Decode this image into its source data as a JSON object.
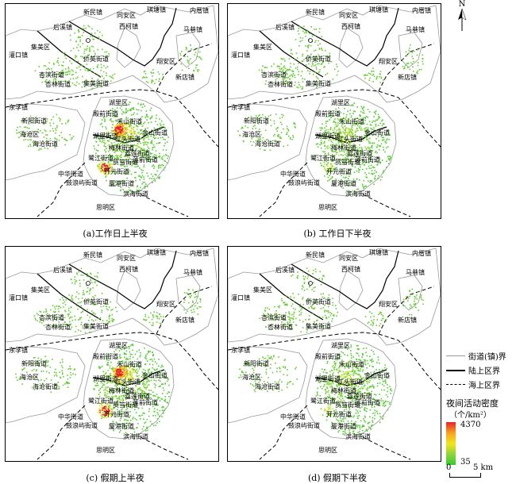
{
  "panels": [
    {
      "id": "a",
      "caption": "(a)工作日上半夜",
      "hot": "strong"
    },
    {
      "id": "b",
      "caption": "(b) 工作日下半夜",
      "hot": "weak"
    },
    {
      "id": "c",
      "caption": "(c) 假期上半夜",
      "hot": "strong"
    },
    {
      "id": "d",
      "caption": "(d) 假期下半夜",
      "hot": "weak"
    }
  ],
  "places": {
    "xinmin": "新民镇",
    "houxi": "后溪镇",
    "tongan": "同安区",
    "xike": "西柯镇",
    "qitang": "琪塘镇",
    "neicuo": "内厝镇",
    "maxiang": "马巷镇",
    "jimei": "集美区",
    "guankou": "灌口镇",
    "qiaoying": "侨英街道",
    "xiangan": "翔安区",
    "xingbin": "杏滨街道",
    "xinlin": "杏林街道",
    "jimeijd": "集美街道",
    "xindian": "新店镇",
    "dongfu": "东孚镇",
    "huli": "湖里区",
    "xinyang": "新阳街道",
    "dianqian": "殿前街道",
    "heshan": "禾山街道",
    "haicang": "海沧区",
    "haicangjd": "海沧街道",
    "jinshan": "金山街道",
    "huliJd": "湖里街道",
    "jiangtou": "江头街道",
    "lujiang": "鹭江街道",
    "jialian": "嘉莲街道",
    "zhonghua": "中华街道",
    "xiagang": "厦港街道",
    "kaiyuan": "开元街道",
    "lianqian": "莲前街道",
    "gulangyu": "鼓浪屿街道",
    "zhenghe": "筼筜街道",
    "binhai": "滨海街道",
    "siming": "思明区",
    "meilin": "梅林街道"
  },
  "north_label": "N",
  "legend": {
    "items": [
      "街道(镇)界",
      "陆上区界",
      "海上区界"
    ],
    "density_title": "夜间活动密度",
    "density_unit": "（个/km²）",
    "max": "4370",
    "min": "35",
    "scale_left": "0",
    "scale_right": "5 km"
  }
}
